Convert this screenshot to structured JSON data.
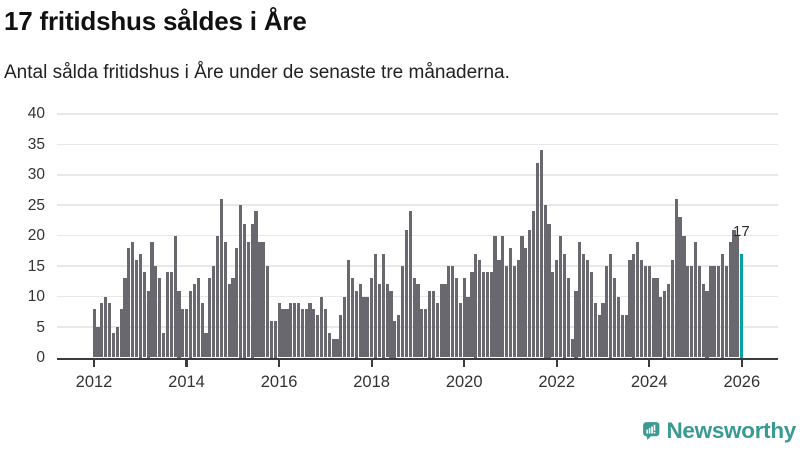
{
  "header": {
    "title": "17 fritidshus såldes i Åre",
    "subtitle": "Antal sålda fritidshus i Åre under de senaste tre månaderna."
  },
  "chart_data": {
    "type": "bar",
    "title": "17 fritidshus såldes i Åre",
    "subtitle": "Antal sålda fritidshus i Åre under de senaste tre månaderna.",
    "frequency": "monthly",
    "x_start_year": 2012,
    "values": [
      8,
      5,
      9,
      10,
      9,
      4,
      5,
      8,
      13,
      18,
      19,
      16,
      17,
      14,
      11,
      19,
      15,
      13,
      4,
      14,
      14,
      20,
      11,
      8,
      8,
      11,
      12,
      13,
      9,
      4,
      13,
      15,
      20,
      26,
      19,
      12,
      13,
      18,
      25,
      22,
      19,
      22,
      24,
      19,
      19,
      15,
      6,
      6,
      9,
      8,
      8,
      9,
      9,
      9,
      8,
      8,
      9,
      8,
      7,
      10,
      8,
      4,
      3,
      3,
      7,
      10,
      16,
      13,
      11,
      12,
      10,
      10,
      13,
      17,
      12,
      17,
      12,
      11,
      6,
      7,
      15,
      21,
      24,
      13,
      12,
      8,
      8,
      11,
      11,
      9,
      12,
      12,
      15,
      15,
      13,
      9,
      13,
      10,
      14,
      17,
      16,
      14,
      14,
      14,
      20,
      16,
      20,
      15,
      18,
      15,
      16,
      20,
      18,
      21,
      24,
      32,
      34,
      25,
      22,
      14,
      16,
      20,
      17,
      13,
      3,
      11,
      19,
      17,
      16,
      14,
      9,
      7,
      9,
      15,
      17,
      13,
      10,
      7,
      7,
      16,
      17,
      19,
      16,
      15,
      15,
      13,
      13,
      10,
      11,
      12,
      16,
      26,
      23,
      20,
      15,
      15,
      19,
      15,
      12,
      11,
      15,
      15,
      15,
      17,
      15,
      19,
      21,
      20,
      17
    ],
    "highlight_last": true,
    "annotation": "17",
    "yticks": [
      0,
      5,
      10,
      15,
      20,
      25,
      30,
      35,
      40
    ],
    "xticks": [
      2012,
      2014,
      2016,
      2018,
      2020,
      2022,
      2024,
      2026
    ],
    "ylim": [
      0,
      40
    ],
    "grid": true,
    "legend_position": "none",
    "colors": {
      "bar": "#68686e",
      "highlight": "#00a3a4",
      "grid": "#e8e8e8",
      "axis": "#3b3b3b",
      "axis_text": "#333333"
    }
  },
  "footer": {
    "brand": "Newsworthy",
    "logo_color": "#3c9a93"
  }
}
